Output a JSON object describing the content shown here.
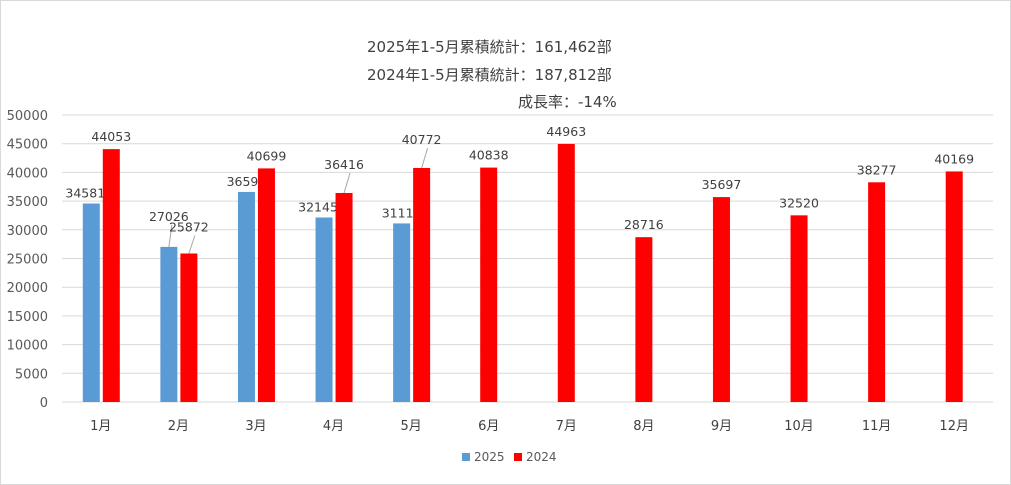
{
  "chart_data": {
    "type": "bar",
    "title_lines": [
      "2025年1-5月累積統計：161,462部",
      "2024年1-5月累積統計：187,812部",
      "成長率：-14%"
    ],
    "categories": [
      "1月",
      "2月",
      "3月",
      "4月",
      "5月",
      "6月",
      "7月",
      "8月",
      "9月",
      "10月",
      "11月",
      "12月"
    ],
    "series": [
      {
        "name": "2025",
        "color": "#5b9bd5",
        "values": [
          34581,
          27026,
          36597,
          32145,
          31112,
          null,
          null,
          null,
          null,
          null,
          null,
          null
        ]
      },
      {
        "name": "2024",
        "color": "#ff0000",
        "values": [
          44053,
          25872,
          40699,
          36416,
          40772,
          40838,
          44963,
          28716,
          35697,
          32520,
          38277,
          40169
        ]
      }
    ],
    "ylim": [
      0,
      50000
    ],
    "yticks": [
      0,
      5000,
      10000,
      15000,
      20000,
      25000,
      30000,
      35000,
      40000,
      45000,
      50000
    ],
    "grid": true,
    "legend": "bottom-center",
    "xlabel": "",
    "ylabel": ""
  }
}
